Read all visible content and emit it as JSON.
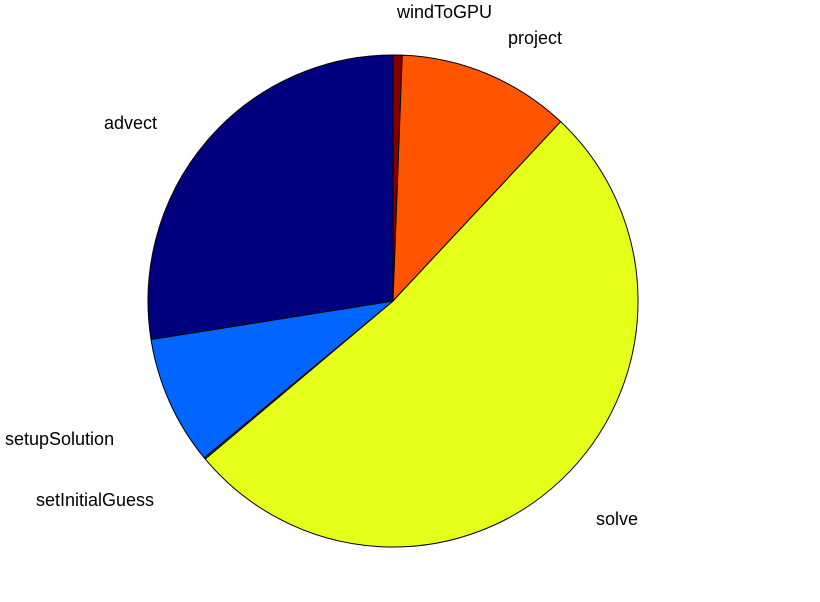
{
  "chart_data": {
    "type": "pie",
    "title": "",
    "series": [
      {
        "label": "windToGPU",
        "value": 0.6,
        "color": "#800000"
      },
      {
        "label": "project",
        "value": 11.4,
        "color": "#ff5500"
      },
      {
        "label": "solve",
        "value": 51.9,
        "color": "#e6ff1a"
      },
      {
        "label": "setInitialGuess",
        "value": 0.1,
        "color": "#1a55ff"
      },
      {
        "label": "setupSolution",
        "value": 8.5,
        "color": "#0066ff"
      },
      {
        "label": "advect",
        "value": 27.5,
        "color": "#00007f"
      }
    ]
  }
}
